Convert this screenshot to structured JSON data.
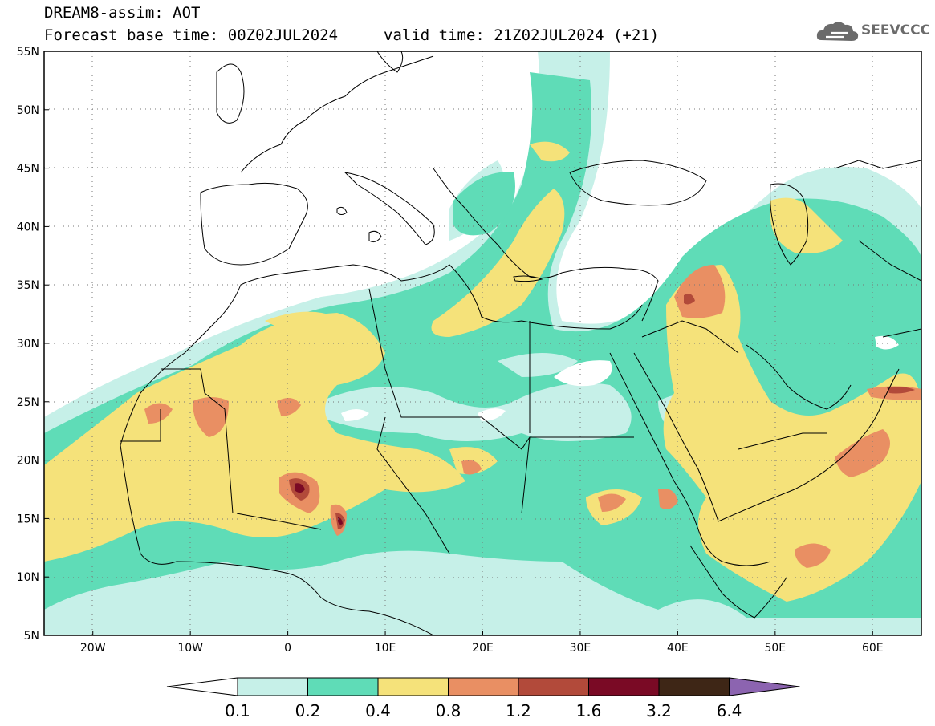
{
  "header": {
    "line1": "DREAM8-assim: AOT",
    "line2_left": "Forecast base time: 00Z02JUL2024",
    "line2_right": "valid time: 21Z02JUL2024 (+21)"
  },
  "logo": {
    "text": "SEEVCCC",
    "icon": "cloud-logo-icon"
  },
  "map": {
    "lon_range": [
      -25,
      65
    ],
    "lat_range": [
      5,
      55
    ],
    "lat_labels": [
      "55N",
      "50N",
      "45N",
      "40N",
      "35N",
      "30N",
      "25N",
      "20N",
      "15N",
      "10N",
      "5N"
    ],
    "lon_labels": [
      "20W",
      "10W",
      "0",
      "10E",
      "20E",
      "30E",
      "40E",
      "50E",
      "60E"
    ],
    "gridlines": "dotted"
  },
  "colorbar": {
    "labels": [
      "0.1",
      "0.2",
      "0.4",
      "0.8",
      "1.2",
      "1.6",
      "3.2",
      "6.4"
    ],
    "colors": [
      "#ffffff",
      "#c6f0e8",
      "#5fdcb7",
      "#f5e27a",
      "#e98f63",
      "#b24a3a",
      "#7a0a25",
      "#3e2616",
      "#8c64b0"
    ]
  }
}
